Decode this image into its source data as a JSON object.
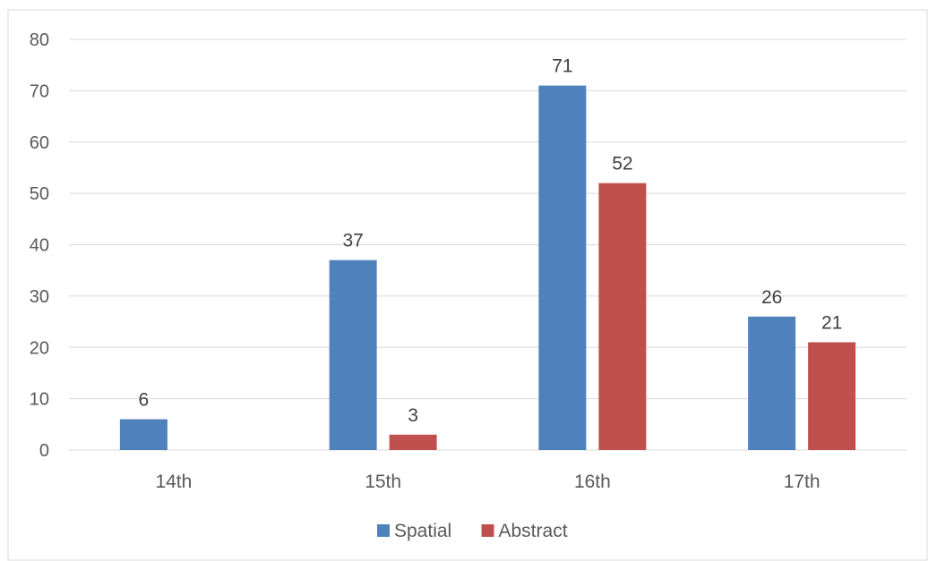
{
  "chart_data": {
    "type": "bar",
    "title": "",
    "xlabel": "",
    "ylabel": "",
    "categories": [
      "14th",
      "15th",
      "16th",
      "17th"
    ],
    "series": [
      {
        "name": "Spatial",
        "values": [
          6,
          37,
          71,
          26
        ],
        "color": "#4F81BD"
      },
      {
        "name": "Abstract",
        "values": [
          null,
          3,
          52,
          21
        ],
        "color": "#C0504D"
      }
    ],
    "ylim": [
      0,
      80
    ],
    "yticks": [
      0,
      10,
      20,
      30,
      40,
      50,
      60,
      70,
      80
    ],
    "grid": true,
    "legend": "bottom-center",
    "data_labels": true
  }
}
